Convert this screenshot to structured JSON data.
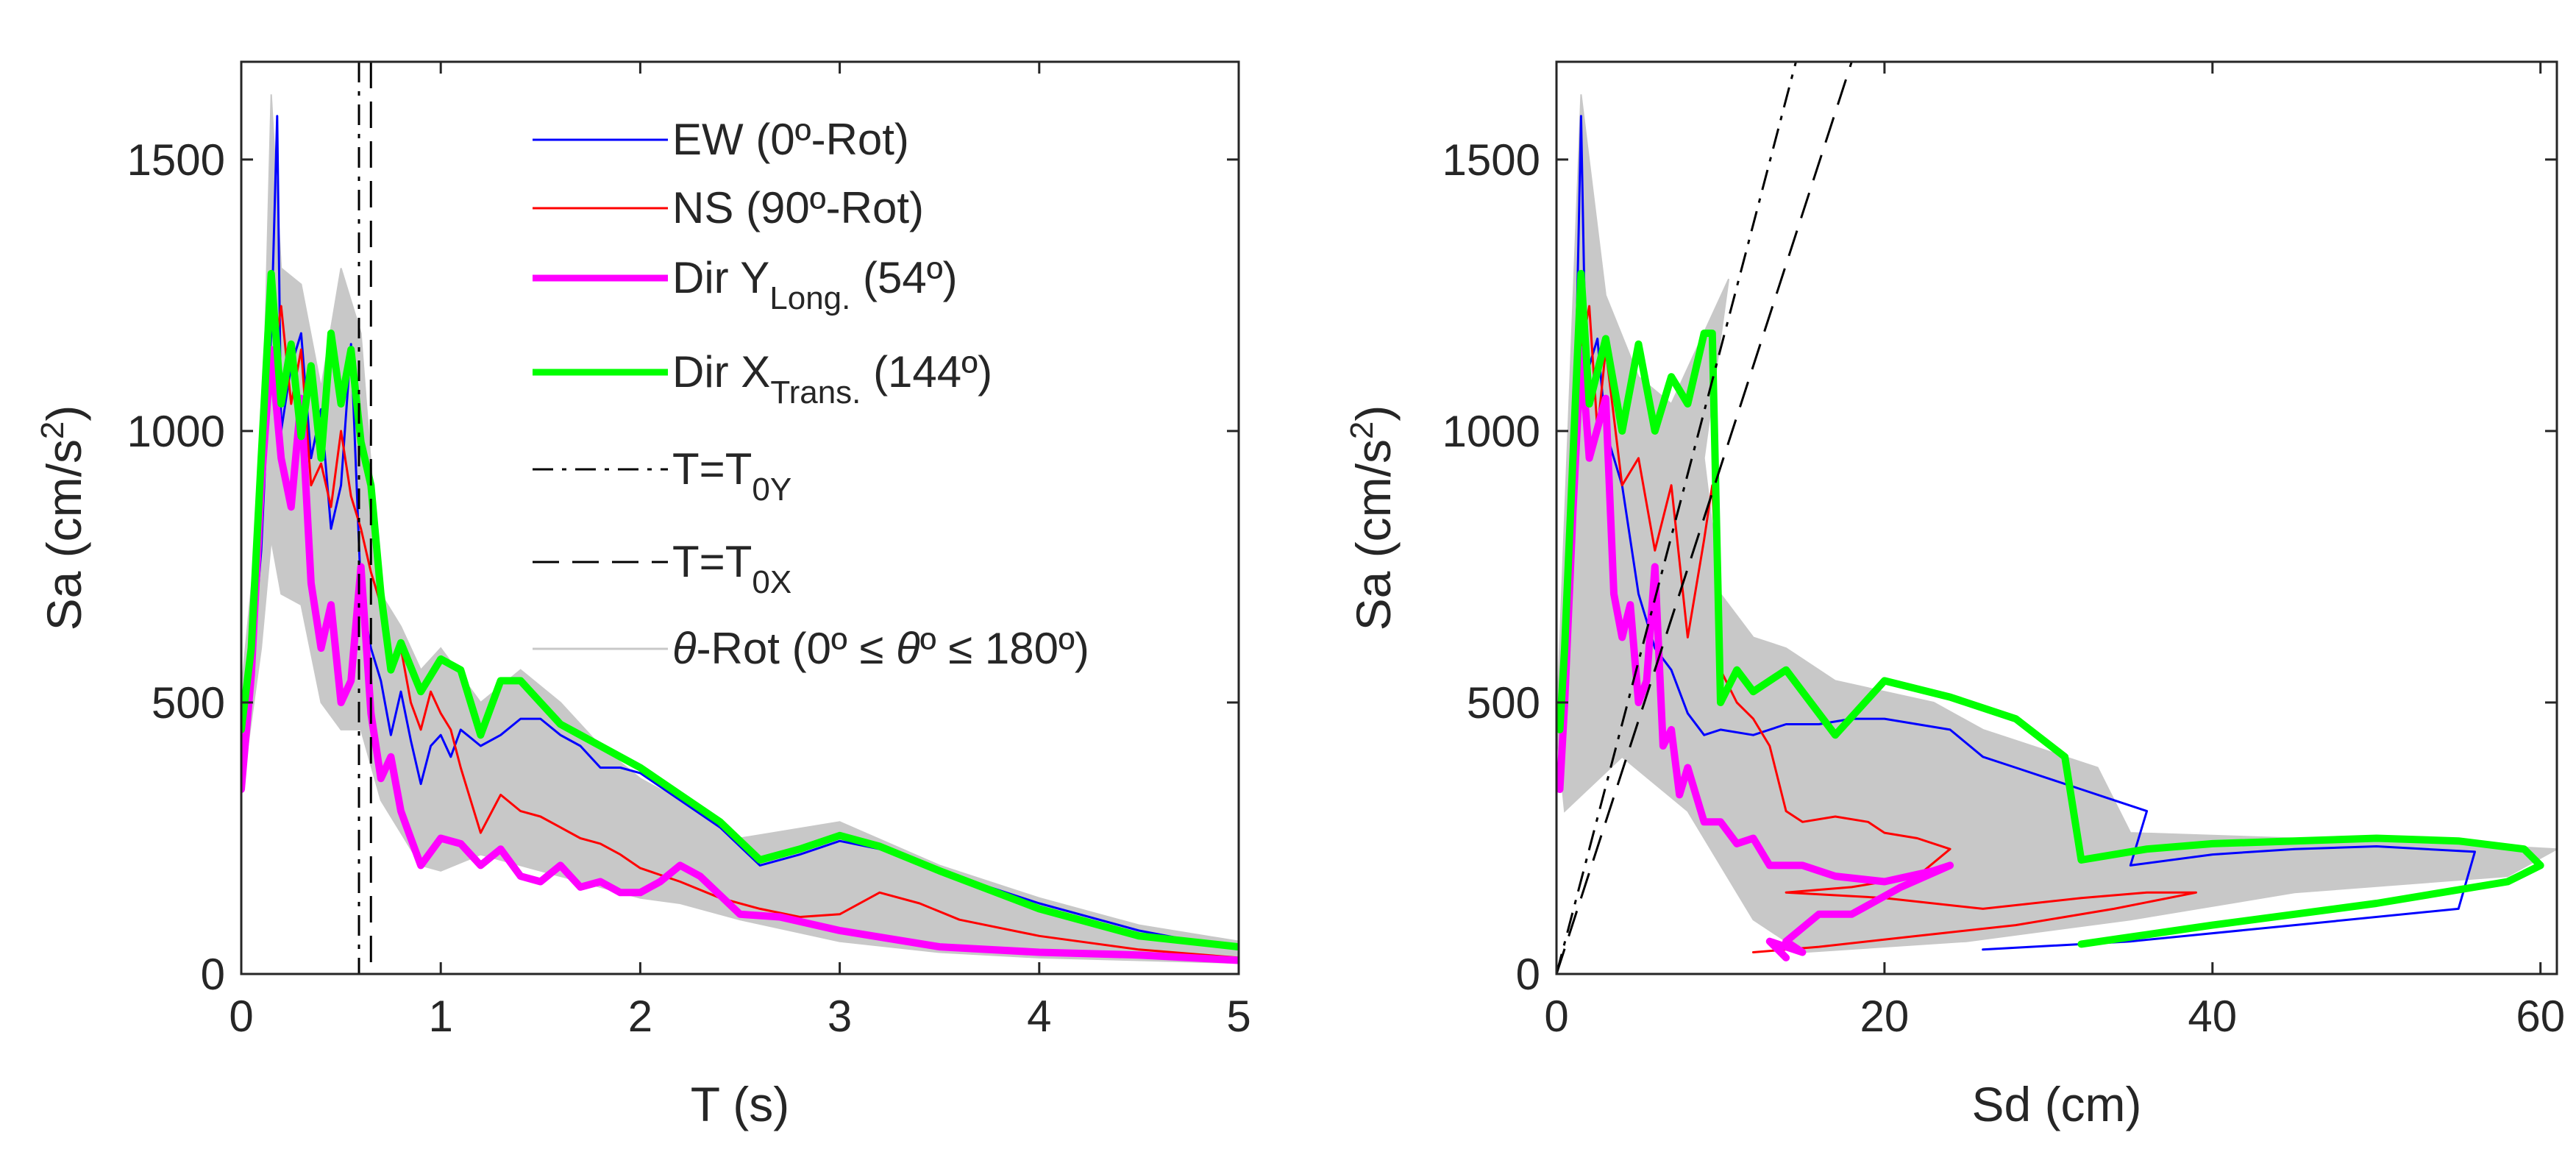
{
  "figure": {
    "title": "",
    "panels": 2
  },
  "colors": {
    "ew": "#0000ff",
    "ns": "#ff0000",
    "diry": "#ff00ff",
    "dirx": "#00ff00",
    "rot": "#c8c8c8",
    "axis": "#262626"
  },
  "legend": {
    "ew": "EW (0º-Rot)",
    "ns": "NS (90º-Rot)",
    "diry_main": "Dir Y",
    "diry_sub": "Long.",
    "diry_tail": " (54º)",
    "dirx_main": "Dir X",
    "dirx_sub": "Trans.",
    "dirx_tail": " (144º)",
    "t0y_main": "T=T",
    "t0y_sub": "0Y",
    "t0x_main": "T=T",
    "t0x_sub": "0X",
    "rot_theta": "θ",
    "rot_text": "-Rot (0º ≤ ",
    "rot_theta2": "θ",
    "rot_text2": "º ≤ 180º)"
  },
  "chart_data": [
    {
      "type": "line",
      "panel": "left",
      "xlabel": "T (s)",
      "ylabel": "Sa (cm/s",
      "ylabel_sup": "2",
      "ylabel_close": ")",
      "xlim": [
        0,
        5
      ],
      "ylim": [
        0,
        1680
      ],
      "xticks": [
        0,
        1,
        2,
        3,
        4,
        5
      ],
      "yticks": [
        0,
        500,
        1000,
        1500
      ],
      "vlines": [
        {
          "name": "T=T0Y",
          "x": 0.59,
          "style": "dashdot"
        },
        {
          "name": "T=T0X",
          "x": 0.65,
          "style": "dashed"
        }
      ],
      "band": {
        "name": "θ-Rot (0º ≤ θº ≤ 180º)",
        "T": [
          0,
          0.1,
          0.15,
          0.2,
          0.3,
          0.4,
          0.5,
          0.6,
          0.7,
          0.8,
          0.9,
          1.0,
          1.2,
          1.4,
          1.6,
          1.8,
          2.0,
          2.2,
          2.5,
          3.0,
          3.5,
          4.0,
          4.5,
          5.0
        ],
        "upper": [
          520,
          900,
          1620,
          1300,
          1270,
          1080,
          1300,
          1180,
          700,
          640,
          560,
          600,
          500,
          560,
          500,
          420,
          360,
          320,
          250,
          280,
          200,
          140,
          90,
          60
        ],
        "lower": [
          330,
          600,
          800,
          700,
          680,
          500,
          450,
          450,
          320,
          260,
          200,
          190,
          220,
          200,
          180,
          160,
          140,
          130,
          100,
          60,
          40,
          30,
          25,
          20
        ]
      },
      "series": [
        {
          "name": "EW (0º-Rot)",
          "x": [
            0,
            0.05,
            0.1,
            0.15,
            0.18,
            0.2,
            0.25,
            0.3,
            0.35,
            0.4,
            0.45,
            0.5,
            0.55,
            0.6,
            0.65,
            0.7,
            0.75,
            0.8,
            0.85,
            0.9,
            0.95,
            1.0,
            1.05,
            1.1,
            1.2,
            1.3,
            1.4,
            1.5,
            1.6,
            1.7,
            1.8,
            1.9,
            2.0,
            2.2,
            2.4,
            2.6,
            2.8,
            3.0,
            3.2,
            3.5,
            4.0,
            4.5,
            5.0
          ],
          "y": [
            380,
            560,
            780,
            1180,
            1580,
            1000,
            1120,
            1180,
            950,
            1040,
            820,
            900,
            1160,
            700,
            600,
            540,
            440,
            520,
            430,
            350,
            420,
            440,
            400,
            450,
            420,
            440,
            470,
            470,
            440,
            420,
            380,
            380,
            370,
            320,
            270,
            200,
            220,
            245,
            230,
            190,
            130,
            80,
            45
          ]
        },
        {
          "name": "NS (90º-Rot)",
          "x": [
            0,
            0.05,
            0.1,
            0.15,
            0.2,
            0.25,
            0.3,
            0.35,
            0.4,
            0.45,
            0.5,
            0.55,
            0.6,
            0.65,
            0.7,
            0.75,
            0.8,
            0.85,
            0.9,
            0.95,
            1.0,
            1.05,
            1.1,
            1.2,
            1.3,
            1.4,
            1.5,
            1.6,
            1.7,
            1.8,
            1.9,
            2.0,
            2.2,
            2.4,
            2.6,
            2.8,
            3.0,
            3.2,
            3.4,
            3.6,
            4.0,
            4.5,
            5.0
          ],
          "y": [
            450,
            620,
            850,
            1100,
            1230,
            1050,
            1150,
            900,
            940,
            860,
            1000,
            880,
            820,
            740,
            680,
            560,
            600,
            500,
            450,
            520,
            480,
            450,
            380,
            260,
            330,
            300,
            290,
            270,
            250,
            240,
            220,
            195,
            170,
            140,
            120,
            105,
            110,
            150,
            130,
            100,
            70,
            45,
            30
          ]
        },
        {
          "name": "Dir YLong. (54º)",
          "x": [
            0,
            0.05,
            0.1,
            0.15,
            0.2,
            0.25,
            0.3,
            0.35,
            0.4,
            0.45,
            0.5,
            0.55,
            0.6,
            0.65,
            0.7,
            0.75,
            0.8,
            0.85,
            0.9,
            1.0,
            1.1,
            1.2,
            1.3,
            1.4,
            1.5,
            1.6,
            1.7,
            1.8,
            1.9,
            2.0,
            2.1,
            2.2,
            2.3,
            2.5,
            2.7,
            3.0,
            3.5,
            4.0,
            4.5,
            5.0
          ],
          "y": [
            340,
            550,
            900,
            1150,
            950,
            860,
            1060,
            720,
            600,
            680,
            500,
            540,
            750,
            480,
            360,
            400,
            300,
            250,
            200,
            250,
            240,
            200,
            230,
            180,
            170,
            200,
            160,
            170,
            150,
            150,
            170,
            200,
            180,
            110,
            105,
            80,
            50,
            40,
            35,
            25
          ]
        },
        {
          "name": "Dir XTrans. (144º)",
          "x": [
            0,
            0.05,
            0.1,
            0.15,
            0.2,
            0.25,
            0.3,
            0.35,
            0.4,
            0.45,
            0.5,
            0.55,
            0.6,
            0.65,
            0.7,
            0.75,
            0.8,
            0.9,
            1.0,
            1.1,
            1.2,
            1.3,
            1.4,
            1.5,
            1.6,
            1.7,
            1.8,
            1.9,
            2.0,
            2.2,
            2.4,
            2.6,
            2.8,
            3.0,
            3.2,
            3.5,
            4.0,
            4.5,
            5.0
          ],
          "y": [
            450,
            600,
            950,
            1290,
            1050,
            1160,
            990,
            1120,
            950,
            1180,
            1050,
            1150,
            980,
            900,
            700,
            560,
            610,
            520,
            580,
            560,
            440,
            540,
            540,
            500,
            460,
            440,
            420,
            400,
            380,
            330,
            280,
            210,
            230,
            255,
            235,
            190,
            120,
            70,
            50
          ]
        }
      ]
    },
    {
      "type": "line",
      "panel": "right",
      "xlabel": "Sd (cm)",
      "ylabel": "Sa (cm/s",
      "ylabel_sup": "2",
      "ylabel_close": ")",
      "xlim": [
        0,
        61
      ],
      "ylim": [
        0,
        1680
      ],
      "xticks": [
        0,
        20,
        40,
        60
      ],
      "yticks": [
        0,
        500,
        1000,
        1500
      ],
      "radial_lines": [
        {
          "name": "T=T0Y",
          "x": [
            0,
            14.6
          ],
          "y": [
            0,
            1680
          ],
          "style": "dashdot"
        },
        {
          "name": "T=T0X",
          "x": [
            0,
            18.0
          ],
          "y": [
            0,
            1680
          ],
          "style": "dashed"
        }
      ],
      "band": {
        "name": "θ-Rot (0º ≤ θº ≤ 180º)",
        "outline_x": [
          0,
          1.5,
          3,
          5,
          7,
          10.5,
          9,
          10,
          12,
          14,
          17,
          20,
          23,
          26,
          29,
          33,
          35,
          45,
          55,
          61,
          58,
          45,
          35,
          25,
          15,
          12,
          8,
          4,
          0.5
        ],
        "outline_y": [
          450,
          1620,
          1250,
          1100,
          1050,
          1280,
          950,
          700,
          620,
          600,
          540,
          520,
          500,
          450,
          420,
          380,
          260,
          250,
          240,
          230,
          180,
          150,
          100,
          60,
          40,
          100,
          300,
          400,
          300
        ]
      },
      "series": [
        {
          "name": "EW (0º-Rot)",
          "x": [
            0.3,
            0.8,
            1.2,
            1.5,
            1.8,
            2.5,
            3,
            4,
            5,
            6,
            7,
            8,
            9,
            10,
            12,
            14,
            16,
            18,
            20,
            22,
            24,
            26,
            28,
            30,
            32,
            34,
            36,
            35,
            40,
            45,
            50,
            56,
            55,
            45,
            35,
            26
          ],
          "y": [
            420,
            700,
            1150,
            1580,
            1100,
            1170,
            1000,
            900,
            700,
            600,
            560,
            480,
            440,
            450,
            440,
            460,
            460,
            470,
            470,
            460,
            450,
            400,
            380,
            360,
            340,
            320,
            300,
            200,
            220,
            230,
            235,
            225,
            120,
            90,
            60,
            45
          ]
        },
        {
          "name": "NS (90º-Rot)",
          "x": [
            0.3,
            1,
            1.5,
            2,
            2.5,
            3,
            4,
            5,
            6,
            7,
            8,
            9,
            9.5,
            10,
            11,
            12,
            13,
            14,
            15,
            17,
            19,
            20,
            22,
            24,
            22,
            18,
            14,
            20,
            26,
            32,
            36,
            39,
            34,
            28,
            22,
            16,
            12
          ],
          "y": [
            440,
            800,
            1150,
            1230,
            1000,
            1150,
            900,
            950,
            780,
            900,
            620,
            800,
            900,
            560,
            500,
            470,
            420,
            300,
            280,
            290,
            280,
            260,
            250,
            230,
            180,
            160,
            150,
            140,
            120,
            140,
            150,
            150,
            120,
            90,
            70,
            50,
            40
          ]
        },
        {
          "name": "Dir YLong. (54º)",
          "x": [
            0.2,
            0.5,
            1,
            1.5,
            2,
            3,
            3.5,
            4,
            4.5,
            5,
            5.5,
            6,
            6.5,
            7,
            7.5,
            8,
            9,
            10,
            11,
            12,
            13,
            15,
            17,
            20,
            23,
            24,
            21,
            18,
            16,
            14,
            15,
            13,
            14
          ],
          "y": [
            340,
            500,
            850,
            1150,
            950,
            1060,
            700,
            620,
            680,
            500,
            540,
            750,
            420,
            450,
            330,
            380,
            280,
            280,
            240,
            250,
            200,
            200,
            180,
            170,
            190,
            200,
            160,
            110,
            110,
            60,
            40,
            60,
            30
          ]
        },
        {
          "name": "Dir XTrans. (144º)",
          "x": [
            0.2,
            0.5,
            1,
            1.5,
            2,
            3,
            4,
            5,
            6,
            7,
            8,
            9,
            9.5,
            10,
            11,
            12,
            14,
            17,
            20,
            24,
            28,
            31,
            32,
            36,
            40,
            45,
            50,
            55,
            59,
            60,
            58,
            50,
            40,
            32
          ],
          "y": [
            450,
            600,
            950,
            1290,
            1050,
            1170,
            1000,
            1160,
            1000,
            1100,
            1050,
            1180,
            1180,
            500,
            560,
            520,
            560,
            440,
            540,
            510,
            470,
            400,
            210,
            230,
            240,
            245,
            250,
            245,
            230,
            200,
            170,
            130,
            90,
            55
          ]
        }
      ]
    }
  ]
}
